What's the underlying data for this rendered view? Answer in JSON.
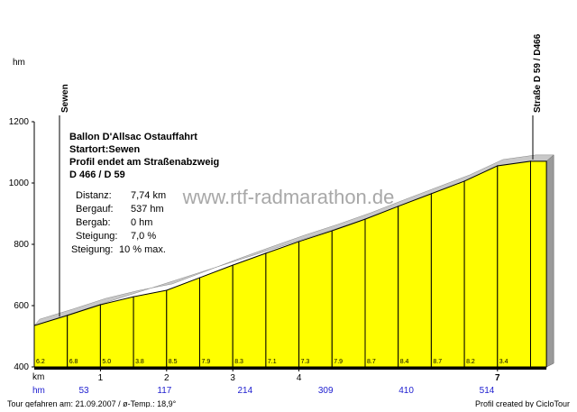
{
  "chart_data": {
    "type": "area",
    "y_unit": "hm",
    "x_unit": "km",
    "climb_unit": "hm",
    "ylim": [
      400,
      1200
    ],
    "yticks": [
      400,
      600,
      800,
      1000,
      1200
    ],
    "xlim": [
      0,
      7.74
    ],
    "xticks": [
      1,
      2,
      3,
      4,
      7
    ],
    "x": [
      0,
      0.5,
      1,
      1.5,
      2,
      2.5,
      3,
      3.5,
      4,
      4.5,
      5,
      5.5,
      6,
      6.5,
      7,
      7.5,
      7.74
    ],
    "values": [
      535,
      568,
      603,
      629,
      650,
      691,
      732,
      771,
      809,
      844,
      882,
      924,
      965,
      1006,
      1056,
      1071,
      1071
    ],
    "color": "#ffff00",
    "gradients": [
      6.2,
      6.8,
      5.0,
      3.8,
      8.5,
      7.9,
      8.3,
      7.1,
      7.3,
      7.9,
      8.7,
      8.4,
      8.7,
      8.2,
      3.4,
      null
    ],
    "gradient_labels": [
      "6.2",
      "6.8",
      "5.0",
      "3.8",
      "8.5",
      "7.9",
      "8.3",
      "7.1",
      "7.3",
      "7.9",
      "8.7",
      "8.4",
      "8.7",
      "8.2",
      "3.4",
      null
    ],
    "climb_labels": [
      53,
      117,
      214,
      309,
      410,
      514
    ],
    "start_label": "Sewen",
    "end_label": "Straße D 59 / D466",
    "info_title": [
      "Ballon D'Allsac  Ostauffahrt",
      "Startort:Sewen",
      "Profil endet am Straßenabzweig",
      "D 466 / D 59"
    ],
    "stats": [
      [
        "Distanz:",
        "7,74 km"
      ],
      [
        "Bergauf:",
        "537 hm"
      ],
      [
        "Bergab:",
        "0 hm"
      ],
      [
        "Steigung:",
        "7,0 %"
      ],
      [
        "Steigung:",
        "10 % max."
      ]
    ],
    "watermark": "www.rtf-radmarathon.de",
    "footer_left": "Tour gefahren am: 21.09.2007  /  ø-Temp.: 18,9°",
    "footer_right": "Profil created by CicloTour"
  }
}
